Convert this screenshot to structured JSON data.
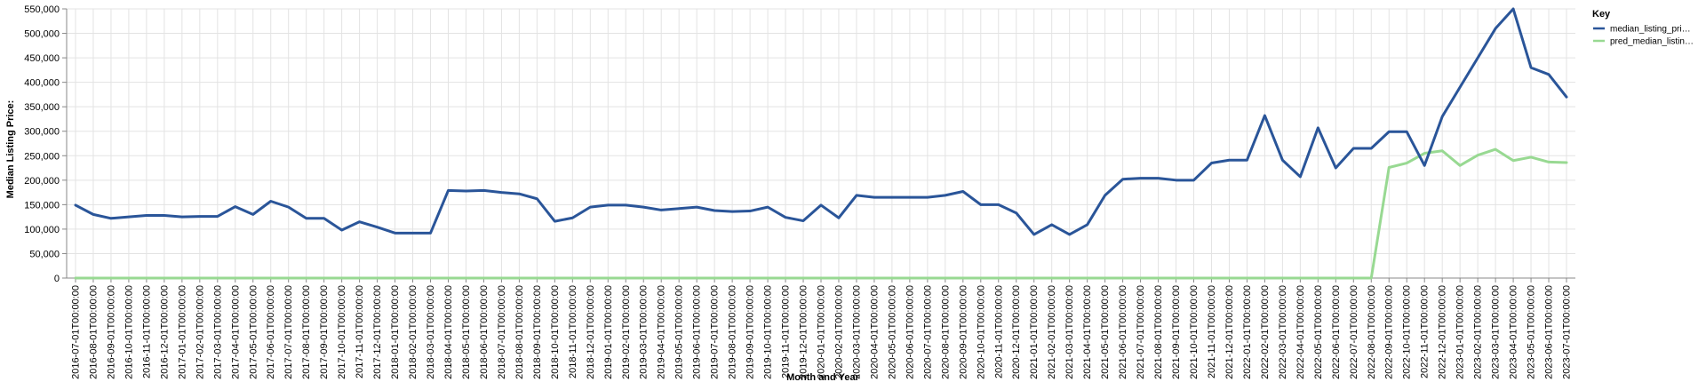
{
  "chart_data": {
    "type": "line",
    "xlabel": "Month and Year",
    "ylabel": "Median Listing Price:",
    "ylim": [
      0,
      550000
    ],
    "y_ticks": [
      0,
      50000,
      100000,
      150000,
      200000,
      250000,
      300000,
      350000,
      400000,
      450000,
      500000,
      550000
    ],
    "y_tick_labels": [
      "0",
      "50,000",
      "100,000",
      "150,000",
      "200,000",
      "250,000",
      "300,000",
      "350,000",
      "400,000",
      "450,000",
      "500,000",
      "550,000"
    ],
    "grid": true,
    "legend_position": "right",
    "legend_title": "Key",
    "categories": [
      "2016-07-01T00:00:00",
      "2016-08-01T00:00:00",
      "2016-09-01T00:00:00",
      "2016-10-01T00:00:00",
      "2016-11-01T00:00:00",
      "2016-12-01T00:00:00",
      "2017-01-01T00:00:00",
      "2017-02-01T00:00:00",
      "2017-03-01T00:00:00",
      "2017-04-01T00:00:00",
      "2017-05-01T00:00:00",
      "2017-06-01T00:00:00",
      "2017-07-01T00:00:00",
      "2017-08-01T00:00:00",
      "2017-09-01T00:00:00",
      "2017-10-01T00:00:00",
      "2017-11-01T00:00:00",
      "2017-12-01T00:00:00",
      "2018-01-01T00:00:00",
      "2018-02-01T00:00:00",
      "2018-03-01T00:00:00",
      "2018-04-01T00:00:00",
      "2018-05-01T00:00:00",
      "2018-06-01T00:00:00",
      "2018-07-01T00:00:00",
      "2018-08-01T00:00:00",
      "2018-09-01T00:00:00",
      "2018-10-01T00:00:00",
      "2018-11-01T00:00:00",
      "2018-12-01T00:00:00",
      "2019-01-01T00:00:00",
      "2019-02-01T00:00:00",
      "2019-03-01T00:00:00",
      "2019-04-01T00:00:00",
      "2019-05-01T00:00:00",
      "2019-06-01T00:00:00",
      "2019-07-01T00:00:00",
      "2019-08-01T00:00:00",
      "2019-09-01T00:00:00",
      "2019-10-01T00:00:00",
      "2019-11-01T00:00:00",
      "2019-12-01T00:00:00",
      "2020-01-01T00:00:00",
      "2020-02-01T00:00:00",
      "2020-03-01T00:00:00",
      "2020-04-01T00:00:00",
      "2020-05-01T00:00:00",
      "2020-06-01T00:00:00",
      "2020-07-01T00:00:00",
      "2020-08-01T00:00:00",
      "2020-09-01T00:00:00",
      "2020-10-01T00:00:00",
      "2020-11-01T00:00:00",
      "2020-12-01T00:00:00",
      "2021-01-01T00:00:00",
      "2021-02-01T00:00:00",
      "2021-03-01T00:00:00",
      "2021-04-01T00:00:00",
      "2021-05-01T00:00:00",
      "2021-06-01T00:00:00",
      "2021-07-01T00:00:00",
      "2021-08-01T00:00:00",
      "2021-09-01T00:00:00",
      "2021-10-01T00:00:00",
      "2021-11-01T00:00:00",
      "2021-12-01T00:00:00",
      "2022-01-01T00:00:00",
      "2022-02-01T00:00:00",
      "2022-03-01T00:00:00",
      "2022-04-01T00:00:00",
      "2022-05-01T00:00:00",
      "2022-06-01T00:00:00",
      "2022-07-01T00:00:00",
      "2022-08-01T00:00:00",
      "2022-09-01T00:00:00",
      "2022-10-01T00:00:00",
      "2022-11-01T00:00:00",
      "2022-12-01T00:00:00",
      "2023-01-01T00:00:00",
      "2023-02-01T00:00:00",
      "2023-03-01T00:00:00",
      "2023-04-01T00:00:00",
      "2023-05-01T00:00:00",
      "2023-06-01T00:00:00",
      "2023-07-01T00:00:00"
    ],
    "series": [
      {
        "name": "median_listing_pri…",
        "color": "#2a5599",
        "values": [
          149000,
          130000,
          122000,
          125000,
          128000,
          128000,
          125000,
          126000,
          126000,
          146000,
          130000,
          157000,
          145000,
          122000,
          122000,
          98000,
          115000,
          104000,
          92000,
          92000,
          92000,
          179000,
          178000,
          179000,
          175000,
          172000,
          162000,
          116000,
          123000,
          145000,
          149000,
          149000,
          145000,
          139000,
          142000,
          145000,
          138000,
          136000,
          137000,
          145000,
          124000,
          117000,
          149000,
          123000,
          169000,
          165000,
          165000,
          165000,
          165000,
          169000,
          177000,
          150000,
          150000,
          133000,
          89000,
          109000,
          89000,
          109000,
          169000,
          202000,
          204000,
          204000,
          200000,
          200000,
          235000,
          241000,
          241000,
          332000,
          241000,
          207000,
          307000,
          225000,
          265000,
          265000,
          299000,
          299000,
          230000,
          330000,
          390000,
          450000,
          510000,
          550000,
          430000,
          416000,
          370000
        ]
      },
      {
        "name": "pred_median_listin…",
        "color": "#98d992",
        "values": [
          0,
          0,
          0,
          0,
          0,
          0,
          0,
          0,
          0,
          0,
          0,
          0,
          0,
          0,
          0,
          0,
          0,
          0,
          0,
          0,
          0,
          0,
          0,
          0,
          0,
          0,
          0,
          0,
          0,
          0,
          0,
          0,
          0,
          0,
          0,
          0,
          0,
          0,
          0,
          0,
          0,
          0,
          0,
          0,
          0,
          0,
          0,
          0,
          0,
          0,
          0,
          0,
          0,
          0,
          0,
          0,
          0,
          0,
          0,
          0,
          0,
          0,
          0,
          0,
          0,
          0,
          0,
          0,
          0,
          0,
          0,
          0,
          0,
          0,
          226000,
          235000,
          255000,
          260000,
          230000,
          251000,
          263000,
          240000,
          247000,
          237000,
          236000
        ]
      }
    ]
  }
}
